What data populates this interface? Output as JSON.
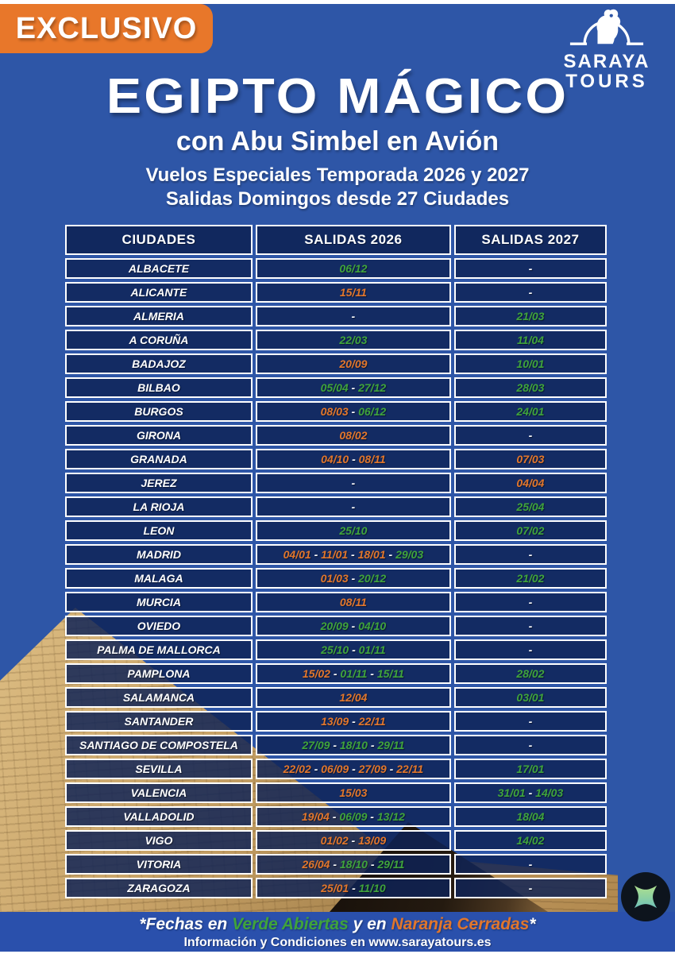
{
  "badge": {
    "label": "EXCLUSIVO",
    "color": "#e8772a"
  },
  "logo": {
    "name": "SARAYA",
    "sub": "TOURS",
    "icon": "pharaoh-arch-icon"
  },
  "header": {
    "title": "EGIPTO MÁGICO",
    "subtitle": "con Abu Simbel en Avión",
    "line1": "Vuelos Especiales Temporada 2026 y 2027",
    "line2": "Salidas Domingos desde 27 Ciudades"
  },
  "colors": {
    "background": "#2e56a7",
    "cell": "#12265c",
    "open": "#3fa33c",
    "closed": "#e1762c",
    "none": "#ffffff",
    "footer_bar": "#2a50ac"
  },
  "table": {
    "headers": [
      "CIUDADES",
      "SALIDAS 2026",
      "SALIDAS 2027"
    ],
    "rows": [
      {
        "city": "ALBACETE",
        "salidas_2026": [
          {
            "date": "06/12",
            "status": "open"
          }
        ],
        "salidas_2027": [
          {
            "date": "-",
            "status": "none"
          }
        ]
      },
      {
        "city": "ALICANTE",
        "salidas_2026": [
          {
            "date": "15/11",
            "status": "closed"
          }
        ],
        "salidas_2027": [
          {
            "date": "-",
            "status": "none"
          }
        ]
      },
      {
        "city": "ALMERIA",
        "salidas_2026": [
          {
            "date": "-",
            "status": "none"
          }
        ],
        "salidas_2027": [
          {
            "date": "21/03",
            "status": "open"
          }
        ]
      },
      {
        "city": "A CORUÑA",
        "salidas_2026": [
          {
            "date": "22/03",
            "status": "open"
          }
        ],
        "salidas_2027": [
          {
            "date": "11/04",
            "status": "open"
          }
        ]
      },
      {
        "city": "BADAJOZ",
        "salidas_2026": [
          {
            "date": "20/09",
            "status": "closed"
          }
        ],
        "salidas_2027": [
          {
            "date": "10/01",
            "status": "open"
          }
        ]
      },
      {
        "city": "BILBAO",
        "salidas_2026": [
          {
            "date": "05/04",
            "status": "open"
          },
          {
            "date": "27/12",
            "status": "open"
          }
        ],
        "salidas_2027": [
          {
            "date": "28/03",
            "status": "open"
          }
        ]
      },
      {
        "city": "BURGOS",
        "salidas_2026": [
          {
            "date": "08/03",
            "status": "closed"
          },
          {
            "date": "06/12",
            "status": "open"
          }
        ],
        "salidas_2027": [
          {
            "date": "24/01",
            "status": "open"
          }
        ]
      },
      {
        "city": "GIRONA",
        "salidas_2026": [
          {
            "date": "08/02",
            "status": "closed"
          }
        ],
        "salidas_2027": [
          {
            "date": "-",
            "status": "none"
          }
        ]
      },
      {
        "city": "GRANADA",
        "salidas_2026": [
          {
            "date": "04/10",
            "status": "closed"
          },
          {
            "date": "08/11",
            "status": "closed"
          }
        ],
        "salidas_2027": [
          {
            "date": "07/03",
            "status": "closed"
          }
        ]
      },
      {
        "city": "JEREZ",
        "salidas_2026": [
          {
            "date": "-",
            "status": "none"
          }
        ],
        "salidas_2027": [
          {
            "date": "04/04",
            "status": "closed"
          }
        ]
      },
      {
        "city": "LA RIOJA",
        "salidas_2026": [
          {
            "date": "-",
            "status": "none"
          }
        ],
        "salidas_2027": [
          {
            "date": "25/04",
            "status": "open"
          }
        ]
      },
      {
        "city": "LEON",
        "salidas_2026": [
          {
            "date": "25/10",
            "status": "open"
          }
        ],
        "salidas_2027": [
          {
            "date": "07/02",
            "status": "open"
          }
        ]
      },
      {
        "city": "MADRID",
        "salidas_2026": [
          {
            "date": "04/01",
            "status": "closed"
          },
          {
            "date": "11/01",
            "status": "closed"
          },
          {
            "date": "18/01",
            "status": "closed"
          },
          {
            "date": "29/03",
            "status": "open"
          }
        ],
        "salidas_2027": [
          {
            "date": "-",
            "status": "none"
          }
        ]
      },
      {
        "city": "MALAGA",
        "salidas_2026": [
          {
            "date": "01/03",
            "status": "closed"
          },
          {
            "date": "20/12",
            "status": "open"
          }
        ],
        "salidas_2027": [
          {
            "date": "21/02",
            "status": "open"
          }
        ]
      },
      {
        "city": "MURCIA",
        "salidas_2026": [
          {
            "date": "08/11",
            "status": "closed"
          }
        ],
        "salidas_2027": [
          {
            "date": "-",
            "status": "none"
          }
        ]
      },
      {
        "city": "OVIEDO",
        "salidas_2026": [
          {
            "date": "20/09",
            "status": "open"
          },
          {
            "date": "04/10",
            "status": "open"
          }
        ],
        "salidas_2027": [
          {
            "date": "-",
            "status": "none"
          }
        ]
      },
      {
        "city": "PALMA DE MALLORCA",
        "salidas_2026": [
          {
            "date": "25/10",
            "status": "open"
          },
          {
            "date": "01/11",
            "status": "open"
          }
        ],
        "salidas_2027": [
          {
            "date": "-",
            "status": "none"
          }
        ]
      },
      {
        "city": "PAMPLONA",
        "salidas_2026": [
          {
            "date": "15/02",
            "status": "closed"
          },
          {
            "date": "01/11",
            "status": "open"
          },
          {
            "date": "15/11",
            "status": "open"
          }
        ],
        "salidas_2027": [
          {
            "date": "28/02",
            "status": "open"
          }
        ]
      },
      {
        "city": "SALAMANCA",
        "salidas_2026": [
          {
            "date": "12/04",
            "status": "closed"
          }
        ],
        "salidas_2027": [
          {
            "date": "03/01",
            "status": "open"
          }
        ]
      },
      {
        "city": "SANTANDER",
        "salidas_2026": [
          {
            "date": "13/09",
            "status": "closed"
          },
          {
            "date": "22/11",
            "status": "closed"
          }
        ],
        "salidas_2027": [
          {
            "date": "-",
            "status": "none"
          }
        ]
      },
      {
        "city": "SANTIAGO DE COMPOSTELA",
        "salidas_2026": [
          {
            "date": "27/09",
            "status": "open"
          },
          {
            "date": "18/10",
            "status": "open"
          },
          {
            "date": "29/11",
            "status": "open"
          }
        ],
        "salidas_2027": [
          {
            "date": "-",
            "status": "none"
          }
        ]
      },
      {
        "city": "SEVILLA",
        "salidas_2026": [
          {
            "date": "22/02",
            "status": "closed"
          },
          {
            "date": "06/09",
            "status": "closed"
          },
          {
            "date": "27/09",
            "status": "closed"
          },
          {
            "date": "22/11",
            "status": "closed"
          }
        ],
        "salidas_2027": [
          {
            "date": "17/01",
            "status": "open"
          }
        ]
      },
      {
        "city": "VALENCIA",
        "salidas_2026": [
          {
            "date": "15/03",
            "status": "closed"
          }
        ],
        "salidas_2027": [
          {
            "date": "31/01",
            "status": "open"
          },
          {
            "date": "14/03",
            "status": "open"
          }
        ]
      },
      {
        "city": "VALLADOLID",
        "salidas_2026": [
          {
            "date": "19/04",
            "status": "closed"
          },
          {
            "date": "06/09",
            "status": "open"
          },
          {
            "date": "13/12",
            "status": "open"
          }
        ],
        "salidas_2027": [
          {
            "date": "18/04",
            "status": "open"
          }
        ]
      },
      {
        "city": "VIGO",
        "salidas_2026": [
          {
            "date": "01/02",
            "status": "closed"
          },
          {
            "date": "13/09",
            "status": "closed"
          }
        ],
        "salidas_2027": [
          {
            "date": "14/02",
            "status": "open"
          }
        ]
      },
      {
        "city": "VITORIA",
        "salidas_2026": [
          {
            "date": "26/04",
            "status": "closed"
          },
          {
            "date": "18/10",
            "status": "open"
          },
          {
            "date": "29/11",
            "status": "open"
          }
        ],
        "salidas_2027": [
          {
            "date": "-",
            "status": "none"
          }
        ]
      },
      {
        "city": "ZARAGOZA",
        "salidas_2026": [
          {
            "date": "25/01",
            "status": "closed"
          },
          {
            "date": "11/10",
            "status": "open"
          }
        ],
        "salidas_2027": [
          {
            "date": "-",
            "status": "none"
          }
        ]
      }
    ]
  },
  "footer": {
    "note_parts": [
      {
        "text": "*Fechas en ",
        "status": "none"
      },
      {
        "text": "Verde Abiertas",
        "status": "open"
      },
      {
        "text": " y en ",
        "status": "none"
      },
      {
        "text": "Naranja Cerradas",
        "status": "closed"
      },
      {
        "text": "*",
        "status": "none"
      }
    ],
    "info": "Información y Condiciones en www.sarayatours.es"
  },
  "corner_widget": {
    "icon": "sparkle-star-icon"
  }
}
